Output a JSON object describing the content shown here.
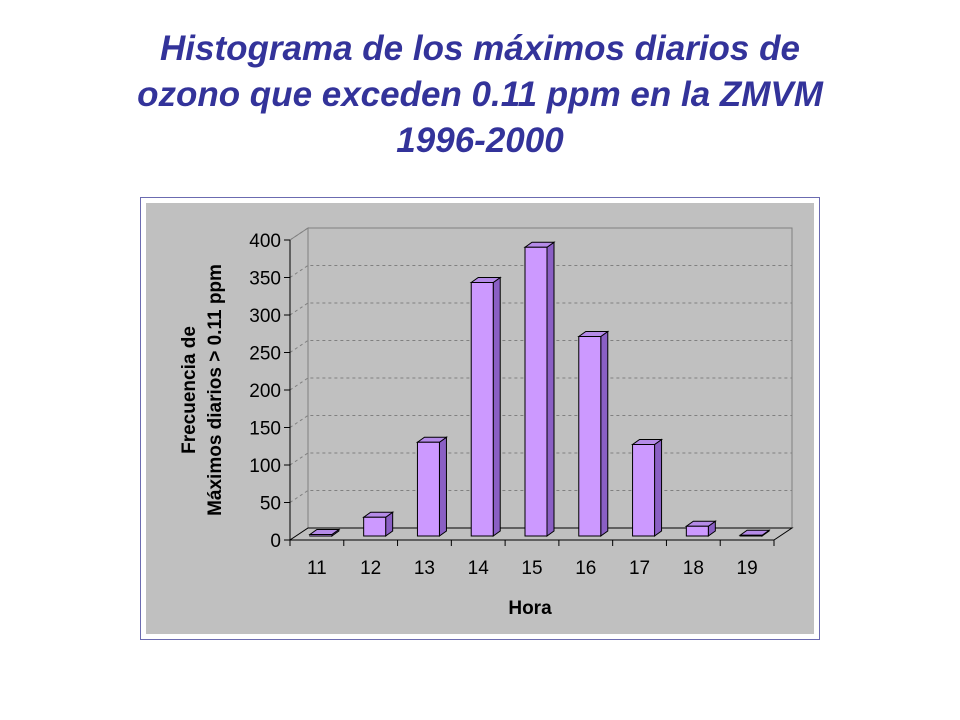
{
  "title": {
    "line1": "Histograma de los máximos diarios de",
    "line2": "ozono que exceden 0.11 ppm en la ZMVM",
    "line3": "1996-2000"
  },
  "chart_data": {
    "type": "bar",
    "title": "",
    "categories": [
      "11",
      "12",
      "13",
      "14",
      "15",
      "16",
      "17",
      "18",
      "19"
    ],
    "values": [
      2,
      25,
      125,
      338,
      385,
      266,
      122,
      13,
      1
    ],
    "xlabel": "Hora",
    "ylabel_line1": "Frecuencia de",
    "ylabel_line2": "Máximos diarios > 0.11 ppm",
    "ylim": [
      0,
      400
    ],
    "yticks": [
      "0",
      "50",
      "100",
      "150",
      "200",
      "250",
      "300",
      "350",
      "400"
    ],
    "grid": true,
    "legend": "none",
    "colors": {
      "bar_front": "#cc99ff",
      "bar_side": "#8a5fc4",
      "bar_top": "#b58be8",
      "plot_background": "#c0c0c0",
      "title": "#33339a"
    }
  }
}
